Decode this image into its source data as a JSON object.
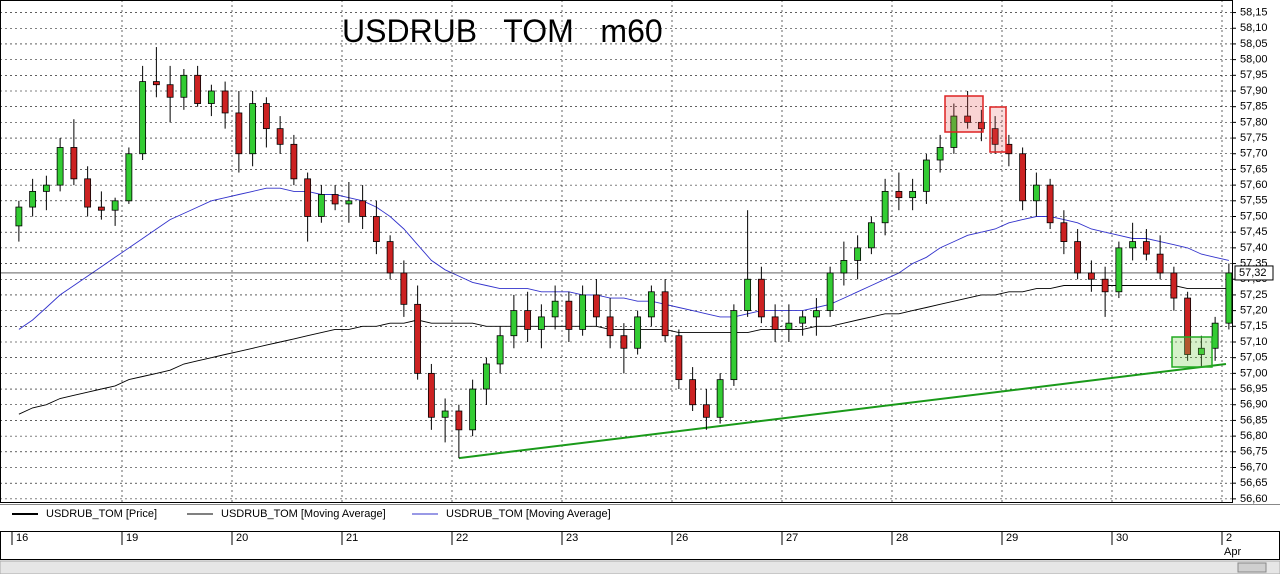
{
  "chart_data": {
    "type": "candlestick",
    "title": "USDRUB   TOM   m60",
    "price_name": "USDRUB_TOM [Price]",
    "up_color": "#33cc33",
    "down_color": "#cc2222",
    "ylim": [
      56.59,
      58.19
    ],
    "yticks": [
      {
        "value": 56.6,
        "label": "56,60"
      },
      {
        "value": 56.65,
        "label": "56,65"
      },
      {
        "value": 56.7,
        "label": "56,70"
      },
      {
        "value": 56.75,
        "label": "56,75"
      },
      {
        "value": 56.8,
        "label": "56,80"
      },
      {
        "value": 56.85,
        "label": "56,85"
      },
      {
        "value": 56.9,
        "label": "56,90"
      },
      {
        "value": 56.95,
        "label": "56,95"
      },
      {
        "value": 57.0,
        "label": "57,00"
      },
      {
        "value": 57.05,
        "label": "57,05"
      },
      {
        "value": 57.1,
        "label": "57,10"
      },
      {
        "value": 57.15,
        "label": "57,15"
      },
      {
        "value": 57.2,
        "label": "57,20"
      },
      {
        "value": 57.25,
        "label": "57,25"
      },
      {
        "value": 57.3,
        "label": "57,30"
      },
      {
        "value": 57.35,
        "label": "57,35"
      },
      {
        "value": 57.4,
        "label": "57,40"
      },
      {
        "value": 57.45,
        "label": "57,45"
      },
      {
        "value": 57.5,
        "label": "57,50"
      },
      {
        "value": 57.55,
        "label": "57,55"
      },
      {
        "value": 57.6,
        "label": "57,60"
      },
      {
        "value": 57.65,
        "label": "57,65"
      },
      {
        "value": 57.7,
        "label": "57,70"
      },
      {
        "value": 57.75,
        "label": "57,75"
      },
      {
        "value": 57.8,
        "label": "57,80"
      },
      {
        "value": 57.85,
        "label": "57,85"
      },
      {
        "value": 57.9,
        "label": "57,90"
      },
      {
        "value": 57.95,
        "label": "57,95"
      },
      {
        "value": 58.0,
        "label": "58,00"
      },
      {
        "value": 58.05,
        "label": "58,05"
      },
      {
        "value": 58.1,
        "label": "58,10"
      },
      {
        "value": 58.15,
        "label": "58,15"
      }
    ],
    "grid": true,
    "month_label": "Apr",
    "days": [
      {
        "label": "16",
        "candles": [
          [
            57.47,
            57.55,
            57.42,
            57.53
          ],
          [
            57.53,
            57.62,
            57.5,
            57.58
          ],
          [
            57.58,
            57.63,
            57.52,
            57.6
          ],
          [
            57.6,
            57.75,
            57.58,
            57.72
          ],
          [
            57.72,
            57.81,
            57.6,
            57.62
          ],
          [
            57.62,
            57.66,
            57.5,
            57.53
          ],
          [
            57.53,
            57.58,
            57.49,
            57.52
          ],
          [
            57.52,
            57.56,
            57.47,
            57.55
          ]
        ]
      },
      {
        "label": "19",
        "candles": [
          [
            57.55,
            57.72,
            57.54,
            57.7
          ],
          [
            57.7,
            57.98,
            57.68,
            57.93
          ],
          [
            57.93,
            58.04,
            57.88,
            57.92
          ],
          [
            57.92,
            57.98,
            57.8,
            57.88
          ],
          [
            57.88,
            57.97,
            57.84,
            57.95
          ],
          [
            57.95,
            57.98,
            57.85,
            57.86
          ],
          [
            57.86,
            57.92,
            57.82,
            57.9
          ],
          [
            57.9,
            57.93,
            57.78,
            57.83
          ]
        ]
      },
      {
        "label": "20",
        "candles": [
          [
            57.83,
            57.9,
            57.64,
            57.7
          ],
          [
            57.7,
            57.9,
            57.66,
            57.86
          ],
          [
            57.86,
            57.88,
            57.72,
            57.78
          ],
          [
            57.78,
            57.82,
            57.7,
            57.73
          ],
          [
            57.73,
            57.76,
            57.6,
            57.62
          ],
          [
            57.62,
            57.64,
            57.42,
            57.5
          ],
          [
            57.5,
            57.6,
            57.48,
            57.57
          ],
          [
            57.57,
            57.6,
            57.52,
            57.54
          ]
        ]
      },
      {
        "label": "21",
        "candles": [
          [
            57.54,
            57.61,
            57.48,
            57.55
          ],
          [
            57.55,
            57.6,
            57.46,
            57.5
          ],
          [
            57.5,
            57.55,
            57.38,
            57.42
          ],
          [
            57.42,
            57.44,
            57.3,
            57.32
          ],
          [
            57.32,
            57.36,
            57.18,
            57.22
          ],
          [
            57.22,
            57.28,
            56.98,
            57.0
          ],
          [
            57.0,
            57.03,
            56.82,
            56.86
          ],
          [
            56.86,
            56.92,
            56.78,
            56.88
          ]
        ]
      },
      {
        "label": "22",
        "candles": [
          [
            56.88,
            56.9,
            56.73,
            56.82
          ],
          [
            56.82,
            56.98,
            56.8,
            56.95
          ],
          [
            56.95,
            57.05,
            56.9,
            57.03
          ],
          [
            57.03,
            57.15,
            57.0,
            57.12
          ],
          [
            57.12,
            57.25,
            57.08,
            57.2
          ],
          [
            57.2,
            57.26,
            57.1,
            57.14
          ],
          [
            57.14,
            57.22,
            57.08,
            57.18
          ],
          [
            57.18,
            57.28,
            57.14,
            57.23
          ]
        ]
      },
      {
        "label": "23",
        "candles": [
          [
            57.23,
            57.26,
            57.1,
            57.14
          ],
          [
            57.14,
            57.28,
            57.12,
            57.25
          ],
          [
            57.25,
            57.3,
            57.15,
            57.18
          ],
          [
            57.18,
            57.24,
            57.08,
            57.12
          ],
          [
            57.12,
            57.16,
            57.0,
            57.08
          ],
          [
            57.08,
            57.2,
            57.06,
            57.18
          ],
          [
            57.18,
            57.28,
            57.15,
            57.26
          ],
          [
            57.26,
            57.3,
            57.1,
            57.12
          ]
        ]
      },
      {
        "label": "26",
        "candles": [
          [
            57.12,
            57.14,
            56.95,
            56.98
          ],
          [
            56.98,
            57.02,
            56.88,
            56.9
          ],
          [
            56.9,
            56.95,
            56.82,
            56.86
          ],
          [
            56.86,
            57.0,
            56.84,
            56.98
          ],
          [
            56.98,
            57.22,
            56.96,
            57.2
          ],
          [
            57.2,
            57.52,
            57.18,
            57.3
          ],
          [
            57.3,
            57.34,
            57.16,
            57.18
          ],
          [
            57.18,
            57.22,
            57.1,
            57.14
          ]
        ]
      },
      {
        "label": "27",
        "candles": [
          [
            57.14,
            57.22,
            57.1,
            57.16
          ],
          [
            57.16,
            57.2,
            57.12,
            57.18
          ],
          [
            57.18,
            57.24,
            57.12,
            57.2
          ],
          [
            57.2,
            57.34,
            57.18,
            57.32
          ],
          [
            57.32,
            57.42,
            57.28,
            57.36
          ],
          [
            57.36,
            57.44,
            57.3,
            57.4
          ],
          [
            57.4,
            57.5,
            57.38,
            57.48
          ],
          [
            57.48,
            57.62,
            57.44,
            57.58
          ]
        ]
      },
      {
        "label": "28",
        "candles": [
          [
            57.58,
            57.64,
            57.52,
            57.56
          ],
          [
            57.56,
            57.62,
            57.52,
            57.58
          ],
          [
            57.58,
            57.7,
            57.54,
            57.68
          ],
          [
            57.68,
            57.76,
            57.64,
            57.72
          ],
          [
            57.72,
            57.86,
            57.7,
            57.82
          ],
          [
            57.82,
            57.9,
            57.78,
            57.8
          ],
          [
            57.8,
            57.84,
            57.74,
            57.78
          ],
          [
            57.78,
            57.82,
            57.7,
            57.73
          ]
        ]
      },
      {
        "label": "29",
        "candles": [
          [
            57.73,
            57.76,
            57.66,
            57.7
          ],
          [
            57.7,
            57.72,
            57.52,
            57.55
          ],
          [
            57.55,
            57.64,
            57.5,
            57.6
          ],
          [
            57.6,
            57.62,
            57.46,
            57.48
          ],
          [
            57.48,
            57.52,
            57.38,
            57.42
          ],
          [
            57.42,
            57.46,
            57.3,
            57.32
          ],
          [
            57.32,
            57.36,
            57.26,
            57.3
          ],
          [
            57.3,
            57.34,
            57.18,
            57.26
          ]
        ]
      },
      {
        "label": "30",
        "candles": [
          [
            57.26,
            57.42,
            57.24,
            57.4
          ],
          [
            57.4,
            57.48,
            57.36,
            57.42
          ],
          [
            57.42,
            57.46,
            57.36,
            57.38
          ],
          [
            57.38,
            57.44,
            57.3,
            57.32
          ],
          [
            57.32,
            57.34,
            57.2,
            57.24
          ],
          [
            57.24,
            57.26,
            57.04,
            57.06
          ],
          [
            57.06,
            57.12,
            57.02,
            57.08
          ],
          [
            57.08,
            57.18,
            57.04,
            57.16
          ]
        ]
      },
      {
        "label": "2",
        "candles": [
          [
            57.16,
            57.35,
            57.14,
            57.32
          ]
        ]
      }
    ],
    "series": [
      {
        "name": "USDRUB_TOM [Moving Average]",
        "color": "#000000",
        "values": [
          56.87,
          56.89,
          56.9,
          56.92,
          56.93,
          56.94,
          56.95,
          56.96,
          56.98,
          56.99,
          57.0,
          57.01,
          57.03,
          57.04,
          57.05,
          57.06,
          57.07,
          57.08,
          57.09,
          57.1,
          57.11,
          57.12,
          57.13,
          57.14,
          57.14,
          57.15,
          57.15,
          57.16,
          57.16,
          57.17,
          57.16,
          57.16,
          57.16,
          57.16,
          57.15,
          57.15,
          57.15,
          57.15,
          57.15,
          57.15,
          57.15,
          57.15,
          57.15,
          57.14,
          57.14,
          57.14,
          57.14,
          57.14,
          57.13,
          57.13,
          57.13,
          57.13,
          57.13,
          57.13,
          57.14,
          57.14,
          57.14,
          57.14,
          57.15,
          57.15,
          57.16,
          57.17,
          57.18,
          57.19,
          57.19,
          57.2,
          57.21,
          57.22,
          57.23,
          57.24,
          57.25,
          57.25,
          57.26,
          57.26,
          57.27,
          57.27,
          57.28,
          57.28,
          57.28,
          57.28,
          57.28,
          57.28,
          57.28,
          57.28,
          57.28,
          57.27,
          57.27,
          57.27,
          57.27
        ]
      },
      {
        "name": "USDRUB_TOM [Moving Average]",
        "color": "#3333cc",
        "values": [
          57.14,
          57.17,
          57.21,
          57.25,
          57.28,
          57.31,
          57.34,
          57.37,
          57.4,
          57.43,
          57.46,
          57.49,
          57.51,
          57.53,
          57.55,
          57.56,
          57.57,
          57.58,
          57.59,
          57.59,
          57.58,
          57.58,
          57.57,
          57.57,
          57.56,
          57.55,
          57.53,
          57.5,
          57.46,
          57.41,
          57.36,
          57.33,
          57.31,
          57.29,
          57.28,
          57.27,
          57.27,
          57.27,
          57.26,
          57.26,
          57.26,
          57.25,
          57.25,
          57.24,
          57.24,
          57.23,
          57.23,
          57.22,
          57.21,
          57.2,
          57.19,
          57.18,
          57.18,
          57.19,
          57.2,
          57.2,
          57.2,
          57.2,
          57.21,
          57.22,
          57.24,
          57.26,
          57.28,
          57.3,
          57.32,
          57.35,
          57.37,
          57.4,
          57.42,
          57.44,
          57.45,
          57.46,
          57.48,
          57.49,
          57.5,
          57.5,
          57.49,
          57.48,
          57.46,
          57.45,
          57.44,
          57.43,
          57.43,
          57.42,
          57.41,
          57.4,
          57.38,
          57.37,
          57.36
        ]
      }
    ],
    "last_price": {
      "value": 57.32,
      "label": "57,32"
    },
    "trendline": {
      "values": [
        56.73,
        57.03
      ],
      "color": "#1a9a1a"
    }
  }
}
